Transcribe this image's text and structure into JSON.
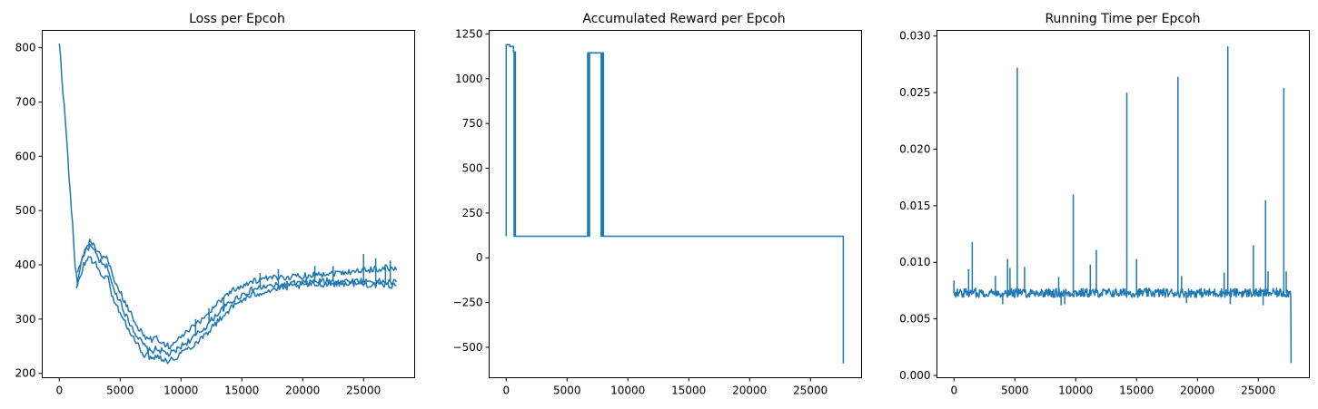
{
  "figure": {
    "background": "#ffffff",
    "line_color": "#1f77b4"
  },
  "chart_data": [
    {
      "type": "line",
      "title": "Loss per Epcoh",
      "xlabel": "",
      "ylabel": "",
      "xlim": [
        -1400,
        29200
      ],
      "ylim": [
        192,
        832
      ],
      "xticks": [
        0,
        5000,
        10000,
        15000,
        20000,
        25000
      ],
      "xtick_labels": [
        "0",
        "5000",
        "10000",
        "15000",
        "20000",
        "25000"
      ],
      "yticks": [
        200,
        300,
        400,
        500,
        600,
        700,
        800
      ],
      "ytick_labels": [
        "200",
        "300",
        "400",
        "500",
        "600",
        "700",
        "800"
      ],
      "grid": false,
      "legend": "none",
      "series": [
        {
          "color": "#1f77b4",
          "x": [
            0,
            100,
            300,
            500,
            700,
            900,
            1100,
            1300,
            1500,
            1700,
            2000,
            2500,
            3000,
            3500,
            4000,
            4500,
            5000,
            5500,
            6000,
            6500,
            7000,
            7500,
            8000,
            8500,
            9000,
            9500,
            10000,
            11000,
            12000,
            13000,
            14000,
            15000,
            16000,
            17000,
            18000,
            19000,
            20000,
            21000,
            22000,
            23000,
            24000,
            25000,
            26000,
            27000,
            27700
          ],
          "y": [
            805,
            785,
            720,
            665,
            600,
            530,
            470,
            400,
            365,
            395,
            420,
            435,
            420,
            400,
            395,
            350,
            335,
            305,
            285,
            265,
            250,
            240,
            245,
            240,
            235,
            240,
            250,
            265,
            285,
            310,
            330,
            345,
            355,
            360,
            362,
            365,
            367,
            369,
            370,
            370,
            370,
            370,
            369,
            368,
            368
          ]
        },
        {
          "color": "#1f77b4",
          "x": [
            1400,
            1700,
            2000,
            2500,
            3000,
            3500,
            4000,
            4500,
            5000,
            5500,
            6000,
            6500,
            7000,
            7500,
            8000,
            8500,
            9000,
            9500,
            10000,
            11000,
            12000,
            13000,
            14000,
            15000,
            16000,
            17000,
            18000,
            19000,
            20000,
            21000,
            22000,
            23000,
            24000,
            25000,
            26000,
            27000,
            27700
          ],
          "y": [
            355,
            375,
            400,
            415,
            400,
            380,
            375,
            330,
            315,
            288,
            268,
            250,
            235,
            230,
            232,
            228,
            222,
            228,
            238,
            252,
            272,
            295,
            318,
            335,
            345,
            352,
            356,
            360,
            362,
            364,
            365,
            366,
            366,
            365,
            363,
            362,
            362
          ]
        },
        {
          "color": "#1f77b4",
          "x": [
            1500,
            2000,
            2500,
            3000,
            3500,
            4000,
            4500,
            5000,
            5500,
            6000,
            6500,
            7000,
            7500,
            8000,
            8500,
            9000,
            9500,
            10000,
            11000,
            12000,
            13000,
            14000,
            15000,
            16000,
            17000,
            18000,
            19000,
            20000,
            21000,
            22000,
            23000,
            24000,
            25000,
            26000,
            27000,
            27700
          ],
          "y": [
            385,
            420,
            445,
            430,
            410,
            412,
            365,
            350,
            325,
            305,
            285,
            268,
            262,
            265,
            258,
            250,
            255,
            268,
            285,
            305,
            330,
            350,
            362,
            370,
            374,
            376,
            378,
            380,
            382,
            384,
            386,
            388,
            390,
            392,
            395,
            390
          ]
        }
      ],
      "spikes": [
        {
          "x": 11200,
          "y": 300
        },
        {
          "x": 12300,
          "y": 320
        },
        {
          "x": 13500,
          "y": 338
        },
        {
          "x": 16500,
          "y": 385
        },
        {
          "x": 18000,
          "y": 392
        },
        {
          "x": 21000,
          "y": 398
        },
        {
          "x": 22500,
          "y": 398
        },
        {
          "x": 25000,
          "y": 420
        },
        {
          "x": 26000,
          "y": 412
        },
        {
          "x": 26800,
          "y": 395
        },
        {
          "x": 27200,
          "y": 408
        }
      ]
    },
    {
      "type": "line",
      "title": "Accumulated Reward per Epcoh",
      "xlabel": "",
      "ylabel": "",
      "xlim": [
        -1400,
        29200
      ],
      "ylim": [
        -670,
        1270
      ],
      "xticks": [
        0,
        5000,
        10000,
        15000,
        20000,
        25000
      ],
      "xtick_labels": [
        "0",
        "5000",
        "10000",
        "15000",
        "20000",
        "25000"
      ],
      "yticks": [
        -500,
        -250,
        0,
        250,
        500,
        750,
        1000,
        1250
      ],
      "ytick_labels": [
        "−500",
        "−250",
        "0",
        "250",
        "500",
        "750",
        "1000",
        "1250"
      ],
      "grid": false,
      "legend": "none",
      "series": [
        {
          "color": "#1f77b4",
          "x": [
            0,
            0,
            30,
            30,
            300,
            300,
            600,
            600,
            650,
            650,
            700,
            700,
            760,
            760,
            6700,
            6700,
            6800,
            6800,
            6850,
            6850,
            6900,
            6900,
            7800,
            7800,
            7900,
            7900,
            8000,
            8000,
            8100,
            8100,
            27700,
            27700
          ],
          "y": [
            120,
            1190,
            1190,
            1190,
            1190,
            1180,
            1180,
            1150,
            1150,
            120,
            120,
            1150,
            1150,
            120,
            120,
            1145,
            1145,
            120,
            120,
            1145,
            1145,
            1145,
            1145,
            120,
            120,
            1145,
            1145,
            120,
            120,
            120,
            120,
            -590
          ]
        }
      ]
    },
    {
      "type": "line",
      "title": "Running Time per Epcoh",
      "xlabel": "",
      "ylabel": "",
      "xlim": [
        -1400,
        29200
      ],
      "ylim": [
        -0.0002,
        0.0305
      ],
      "xticks": [
        0,
        5000,
        10000,
        15000,
        20000,
        25000
      ],
      "xtick_labels": [
        "0",
        "5000",
        "10000",
        "15000",
        "20000",
        "25000"
      ],
      "yticks": [
        0.0,
        0.005,
        0.01,
        0.015,
        0.02,
        0.025,
        0.03
      ],
      "ytick_labels": [
        "0.000",
        "0.005",
        "0.010",
        "0.015",
        "0.020",
        "0.025",
        "0.030"
      ],
      "grid": false,
      "legend": "none",
      "baseline": {
        "start": 0,
        "end": 27700,
        "value": 0.0073,
        "noise": 0.0004
      },
      "spikes": [
        {
          "x": 0,
          "y": 0.0084
        },
        {
          "x": 1200,
          "y": 0.0094
        },
        {
          "x": 1500,
          "y": 0.0118
        },
        {
          "x": 3400,
          "y": 0.0088
        },
        {
          "x": 4400,
          "y": 0.0103
        },
        {
          "x": 4600,
          "y": 0.0095
        },
        {
          "x": 5200,
          "y": 0.0272
        },
        {
          "x": 5800,
          "y": 0.0096
        },
        {
          "x": 8600,
          "y": 0.0087
        },
        {
          "x": 9800,
          "y": 0.016
        },
        {
          "x": 11200,
          "y": 0.0098
        },
        {
          "x": 11700,
          "y": 0.0111
        },
        {
          "x": 14200,
          "y": 0.025
        },
        {
          "x": 15000,
          "y": 0.0103
        },
        {
          "x": 18400,
          "y": 0.0264
        },
        {
          "x": 18700,
          "y": 0.0088
        },
        {
          "x": 22200,
          "y": 0.0091
        },
        {
          "x": 22500,
          "y": 0.0291
        },
        {
          "x": 24600,
          "y": 0.0115
        },
        {
          "x": 25600,
          "y": 0.0155
        },
        {
          "x": 25800,
          "y": 0.0092
        },
        {
          "x": 27100,
          "y": 0.0254
        },
        {
          "x": 27300,
          "y": 0.0092
        }
      ],
      "dips": [
        {
          "x": 4000,
          "y": 0.0063
        },
        {
          "x": 8800,
          "y": 0.0062
        },
        {
          "x": 9100,
          "y": 0.0063
        },
        {
          "x": 19100,
          "y": 0.0064
        },
        {
          "x": 22700,
          "y": 0.0063
        },
        {
          "x": 25400,
          "y": 0.0062
        }
      ],
      "end": {
        "x": 27700,
        "y": 0.0011
      }
    }
  ]
}
